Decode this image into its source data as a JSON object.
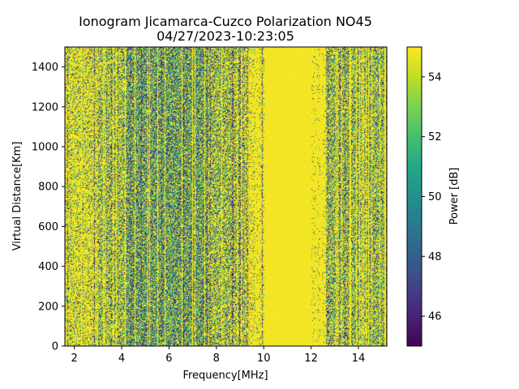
{
  "chart_data": {
    "type": "heatmap",
    "title_line1": "Ionogram Jicamarca-Cuzco Polarization NO45",
    "title_line2": "04/27/2023-10:23:05",
    "xlabel": "Frequency[MHz]",
    "ylabel": "Virtual Distance[Km]",
    "colorbar_label": "Power [dB]",
    "xlim": [
      1.6,
      15.2
    ],
    "ylim": [
      0,
      1500
    ],
    "clim": [
      45,
      55
    ],
    "colormap": "viridis",
    "x_ticks": [
      2,
      4,
      6,
      8,
      10,
      12,
      14
    ],
    "x_tick_labels": [
      "2",
      "4",
      "6",
      "8",
      "10",
      "12",
      "14"
    ],
    "y_ticks": [
      0,
      200,
      400,
      600,
      800,
      1000,
      1200,
      1400
    ],
    "y_tick_labels": [
      "0",
      "200",
      "400",
      "600",
      "800",
      "1000",
      "1200",
      "1400"
    ],
    "colorbar_ticks": [
      46,
      48,
      50,
      52,
      54
    ],
    "colorbar_tick_labels": [
      "46",
      "48",
      "50",
      "52",
      "54"
    ],
    "frequency_bands": [
      {
        "from": 1.6,
        "to": 3.0,
        "noise": 0.3
      },
      {
        "from": 3.0,
        "to": 4.2,
        "noise": 0.55
      },
      {
        "from": 4.2,
        "to": 7.6,
        "noise": 0.8
      },
      {
        "from": 7.6,
        "to": 9.2,
        "noise": 0.55
      },
      {
        "from": 9.2,
        "to": 10.0,
        "noise": 0.15
      },
      {
        "from": 10.0,
        "to": 12.0,
        "noise": 0.0
      },
      {
        "from": 12.0,
        "to": 12.6,
        "noise": 0.08
      },
      {
        "from": 12.6,
        "to": 15.2,
        "noise": 0.6
      }
    ]
  }
}
